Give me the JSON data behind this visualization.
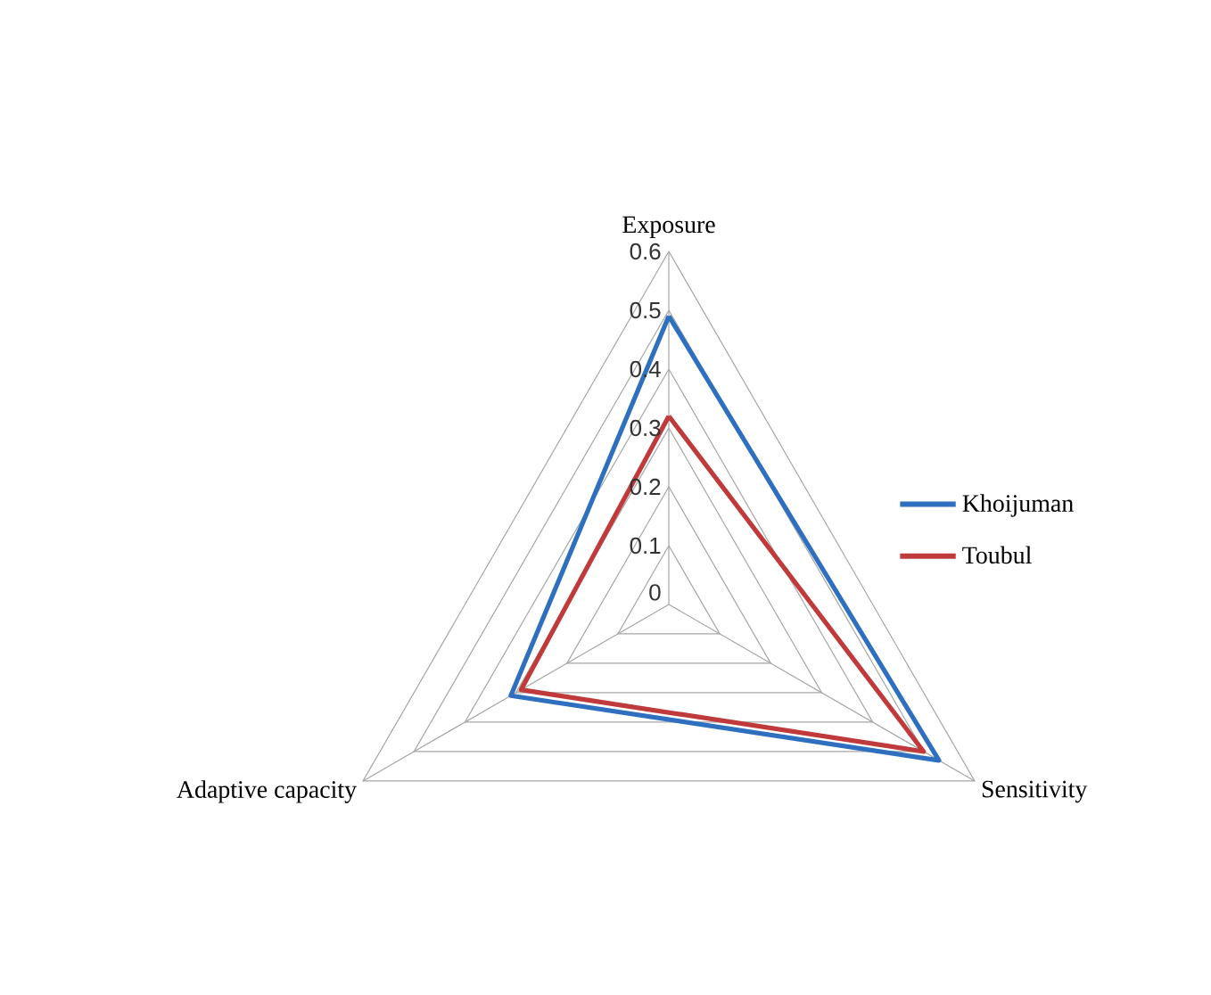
{
  "chart_data": {
    "type": "radar",
    "categories": [
      "Exposure",
      "Sensitivity",
      "Adaptive capacity"
    ],
    "series": [
      {
        "name": "Khoijuman",
        "color": "#2e6fbf",
        "values": [
          0.49,
          0.53,
          0.31
        ]
      },
      {
        "name": "Toubul",
        "color": "#c0393b",
        "values": [
          0.32,
          0.5,
          0.29
        ]
      }
    ],
    "ylim": [
      0,
      0.6
    ],
    "yticks": [
      0,
      0.1,
      0.2,
      0.3,
      0.4,
      0.5,
      0.6
    ],
    "grid": true,
    "legend": "right",
    "marker": "none",
    "line_style": "solid"
  }
}
